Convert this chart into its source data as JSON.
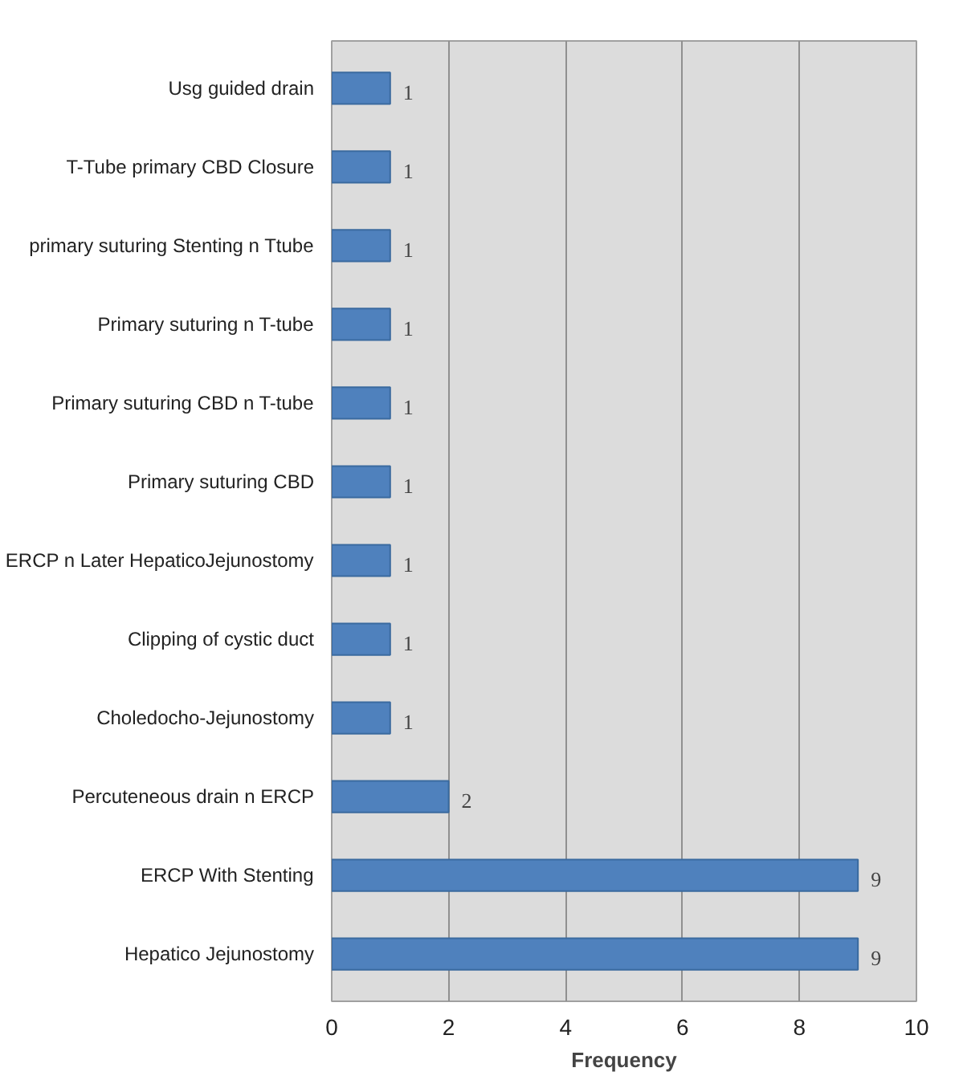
{
  "chart_data": {
    "type": "bar",
    "orientation": "horizontal",
    "xlabel": "Frequency",
    "categories": [
      "Usg guided drain",
      "T-Tube primary CBD Closure",
      "primary suturing Stenting n Ttube",
      "Primary suturing n T-tube",
      "Primary suturing CBD n T-tube",
      "Primary suturing CBD",
      "ERCP n Later HepaticoJejunostomy",
      "Clipping of cystic duct",
      "Choledocho-Jejunostomy",
      "Percuteneous drain n ERCP",
      "ERCP With Stenting",
      "Hepatico Jejunostomy"
    ],
    "values": [
      1,
      1,
      1,
      1,
      1,
      1,
      1,
      1,
      1,
      2,
      9,
      9
    ],
    "color": "#4f81bd",
    "xlim": [
      0,
      10
    ],
    "xticks": [
      0,
      2,
      4,
      6,
      8,
      10
    ],
    "grid": "x",
    "data_labels": true
  }
}
